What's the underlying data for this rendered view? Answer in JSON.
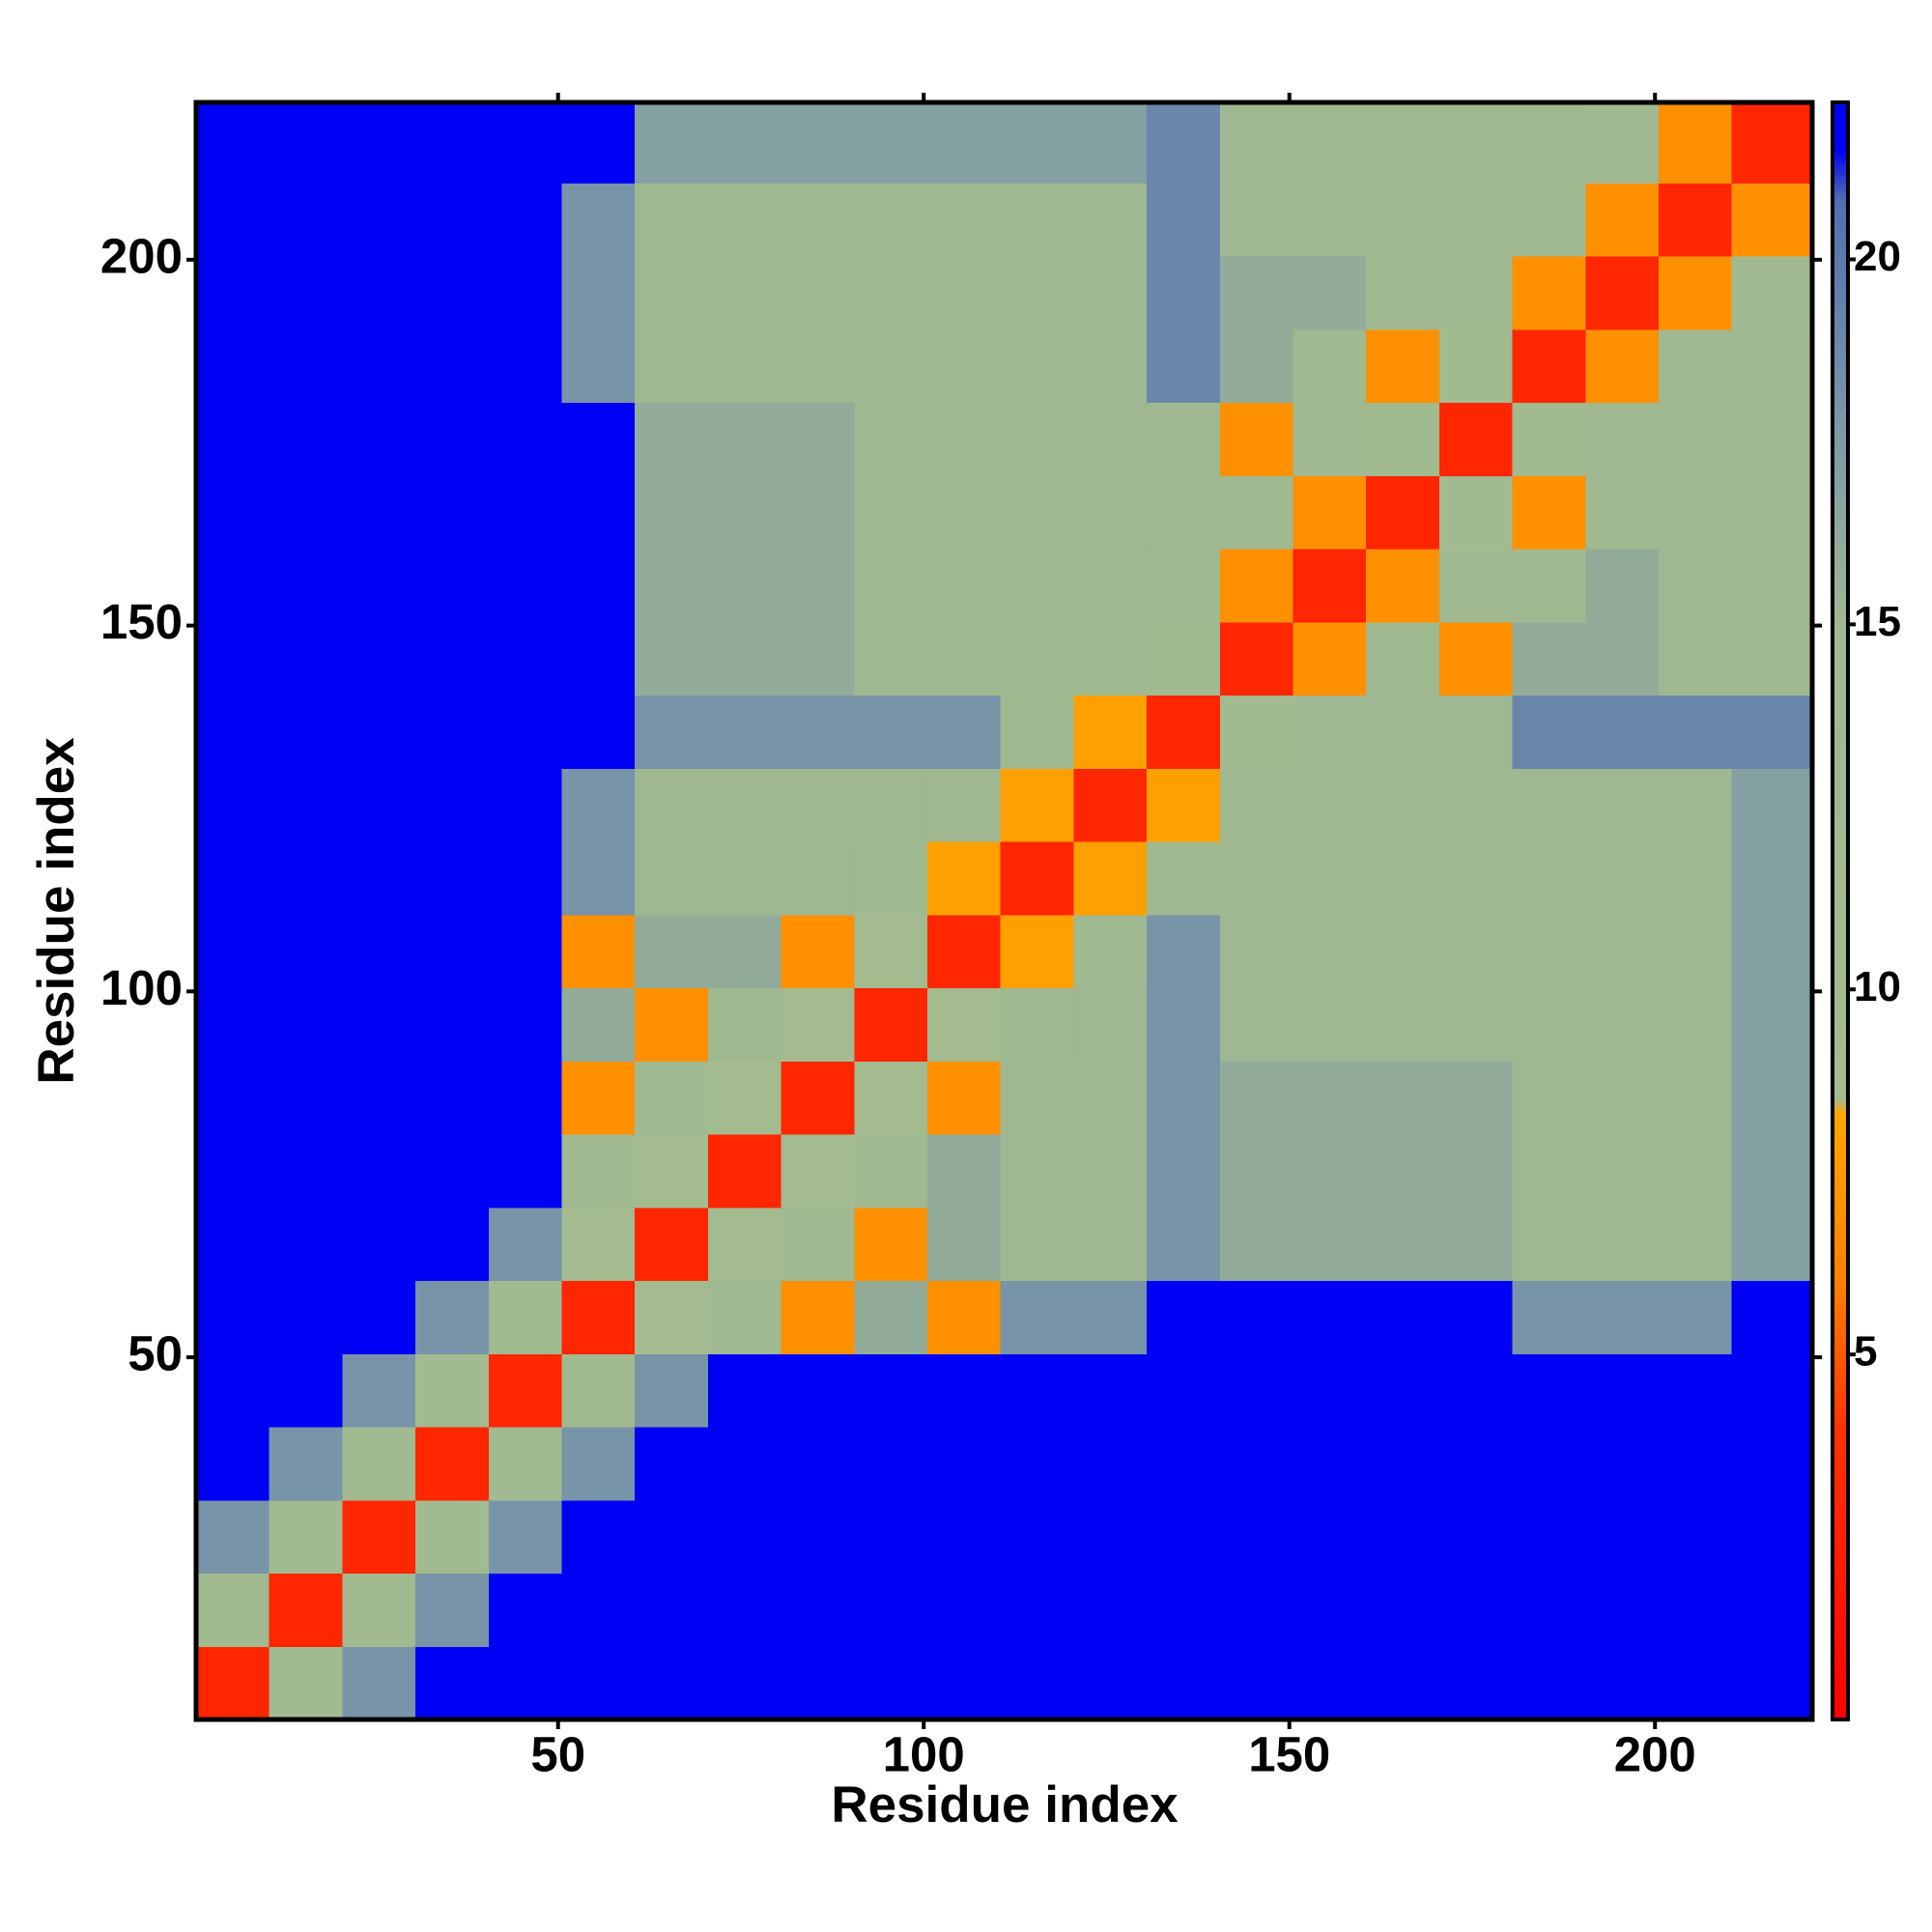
{
  "chart_data": {
    "type": "heatmap",
    "xlabel": "Residue index",
    "ylabel": "Residue index",
    "xlim": [
      0.5,
      221.5
    ],
    "ylim": [
      0.5,
      221.5
    ],
    "xticks": [
      50,
      100,
      150,
      200
    ],
    "yticks": [
      50,
      100,
      150,
      200
    ],
    "xbins": [
      0.5,
      10.5,
      20.5,
      30.5,
      40.5,
      50.5,
      60.5,
      70.5,
      80.5,
      90.5,
      100.5,
      110.5,
      120.5,
      130.5,
      140.5,
      150.5,
      160.5,
      170.5,
      180.5,
      190.5,
      200.5,
      210.5,
      221.5
    ],
    "ybins": [
      0.5,
      10.5,
      20.5,
      30.5,
      40.5,
      50.5,
      60.5,
      70.5,
      80.5,
      90.5,
      100.5,
      110.5,
      120.5,
      130.5,
      140.5,
      150.5,
      160.5,
      170.5,
      180.5,
      190.5,
      200.5,
      210.5,
      221.5
    ],
    "z": [
      [
        3,
        10,
        18,
        22,
        22,
        22,
        22,
        22,
        22,
        22,
        22,
        22,
        22,
        22,
        22,
        22,
        22,
        22,
        22,
        22,
        22,
        22
      ],
      [
        10,
        3,
        10,
        18,
        22,
        22,
        22,
        22,
        22,
        22,
        22,
        22,
        22,
        22,
        22,
        22,
        22,
        22,
        22,
        22,
        22,
        22
      ],
      [
        18,
        10,
        3,
        10,
        18,
        22,
        22,
        22,
        22,
        22,
        22,
        22,
        22,
        22,
        22,
        22,
        22,
        22,
        22,
        22,
        22,
        22
      ],
      [
        22,
        18,
        10,
        3,
        10,
        18,
        22,
        22,
        22,
        22,
        22,
        22,
        22,
        22,
        22,
        22,
        22,
        22,
        22,
        22,
        22,
        22
      ],
      [
        22,
        22,
        18,
        10,
        3,
        10,
        18,
        22,
        22,
        22,
        22,
        22,
        22,
        22,
        22,
        22,
        22,
        22,
        22,
        22,
        22,
        22
      ],
      [
        22,
        22,
        22,
        18,
        10,
        3,
        9,
        13,
        7,
        16,
        7,
        18,
        18,
        22,
        22,
        22,
        22,
        22,
        18,
        18,
        18,
        22
      ],
      [
        22,
        22,
        22,
        22,
        18,
        9,
        3,
        9,
        13,
        7,
        16,
        15,
        15,
        18,
        16,
        16,
        16,
        16,
        15,
        15,
        15,
        17
      ],
      [
        22,
        22,
        22,
        22,
        22,
        13,
        9,
        3,
        9,
        13,
        16,
        15,
        15,
        18,
        16,
        16,
        16,
        16,
        15,
        15,
        15,
        17
      ],
      [
        22,
        22,
        22,
        22,
        22,
        7,
        13,
        9,
        3,
        9,
        7,
        15,
        15,
        18,
        16,
        16,
        16,
        16,
        15,
        15,
        15,
        17
      ],
      [
        22,
        22,
        22,
        22,
        22,
        16,
        7,
        13,
        9,
        3,
        9,
        13,
        15,
        18,
        14,
        14,
        14,
        14,
        15,
        15,
        15,
        17
      ],
      [
        22,
        22,
        22,
        22,
        22,
        7,
        16,
        16,
        7,
        9,
        3,
        8,
        13,
        18,
        14,
        14,
        14,
        14,
        15,
        15,
        15,
        17
      ],
      [
        22,
        22,
        22,
        22,
        22,
        18,
        15,
        15,
        15,
        13,
        8,
        3,
        8,
        13,
        14,
        14,
        14,
        14,
        15,
        15,
        15,
        17
      ],
      [
        22,
        22,
        22,
        22,
        22,
        18,
        15,
        15,
        15,
        15,
        13,
        8,
        3,
        8,
        13,
        14,
        14,
        14,
        15,
        15,
        15,
        17
      ],
      [
        22,
        22,
        22,
        22,
        22,
        22,
        18,
        18,
        18,
        18,
        18,
        13,
        8,
        3,
        10,
        13,
        15,
        15,
        19,
        19,
        19,
        19
      ],
      [
        22,
        22,
        22,
        22,
        22,
        22,
        16,
        16,
        16,
        14,
        14,
        14,
        13,
        10,
        3,
        7,
        13,
        7,
        16,
        16,
        15,
        15
      ],
      [
        22,
        22,
        22,
        22,
        22,
        22,
        16,
        16,
        16,
        14,
        14,
        14,
        14,
        13,
        7,
        3,
        7,
        13,
        13,
        16,
        15,
        15
      ],
      [
        22,
        22,
        22,
        22,
        22,
        22,
        16,
        16,
        16,
        14,
        14,
        14,
        14,
        15,
        13,
        7,
        3,
        10,
        7,
        13,
        15,
        15
      ],
      [
        22,
        22,
        22,
        22,
        22,
        22,
        16,
        16,
        16,
        14,
        14,
        14,
        14,
        15,
        7,
        13,
        10,
        3,
        10,
        13,
        15,
        15
      ],
      [
        22,
        22,
        22,
        22,
        22,
        18,
        15,
        15,
        15,
        15,
        15,
        15,
        15,
        19,
        16,
        13,
        7,
        10,
        3,
        7,
        12,
        15
      ],
      [
        22,
        22,
        22,
        22,
        22,
        18,
        15,
        15,
        15,
        15,
        15,
        15,
        15,
        19,
        16,
        16,
        13,
        13,
        7,
        3,
        7,
        12
      ],
      [
        22,
        22,
        22,
        22,
        22,
        18,
        15,
        15,
        15,
        15,
        15,
        15,
        15,
        19,
        15,
        15,
        15,
        15,
        12,
        7,
        3,
        7
      ],
      [
        22,
        22,
        22,
        22,
        22,
        22,
        17,
        17,
        17,
        17,
        17,
        17,
        17,
        19,
        15,
        15,
        15,
        15,
        15,
        12,
        7,
        3
      ]
    ],
    "zlim": [
      0,
      22.15
    ],
    "zticks": [
      5,
      10,
      15,
      20
    ],
    "colorscale": [
      {
        "value": 0,
        "color": "#ff0000"
      },
      {
        "value": 4,
        "color": "#ff3300"
      },
      {
        "value": 6,
        "color": "#ff8000"
      },
      {
        "value": 8.3,
        "color": "#ffa500"
      },
      {
        "value": 8.5,
        "color": "#a3bb8f"
      },
      {
        "value": 15,
        "color": "#9fb891"
      },
      {
        "value": 17.5,
        "color": "#7f9aa6"
      },
      {
        "value": 20.8,
        "color": "#5070b0"
      },
      {
        "value": 21.5,
        "color": "#0000f4"
      },
      {
        "value": 22.15,
        "color": "#0000f4"
      }
    ]
  }
}
